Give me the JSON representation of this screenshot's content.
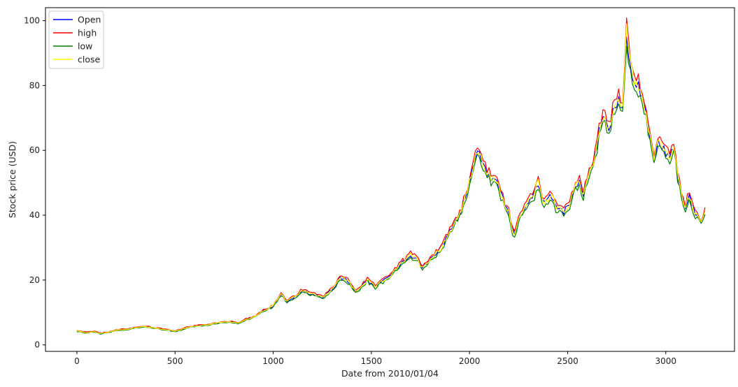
{
  "chart_data": {
    "type": "line",
    "xlabel": "Date from 2010/01/04",
    "ylabel": "Stock price (USD)",
    "xlim": [
      -160,
      3350
    ],
    "ylim": [
      -2,
      104
    ],
    "x_ticks": [
      0,
      500,
      1000,
      1500,
      2000,
      2500,
      3000
    ],
    "y_ticks": [
      0,
      20,
      40,
      60,
      80,
      100
    ],
    "grid": false,
    "legend_position": "upper-left",
    "x_step": 10,
    "close_anchors": [
      [
        0,
        4.3
      ],
      [
        40,
        3.8
      ],
      [
        80,
        4.1
      ],
      [
        120,
        3.5
      ],
      [
        160,
        3.9
      ],
      [
        200,
        4.5
      ],
      [
        260,
        4.9
      ],
      [
        300,
        5.3
      ],
      [
        350,
        5.7
      ],
      [
        400,
        5.2
      ],
      [
        450,
        4.8
      ],
      [
        500,
        4.2
      ],
      [
        560,
        5.3
      ],
      [
        600,
        5.8
      ],
      [
        660,
        6.2
      ],
      [
        720,
        6.8
      ],
      [
        780,
        7.1
      ],
      [
        820,
        6.6
      ],
      [
        860,
        7.8
      ],
      [
        900,
        8.6
      ],
      [
        950,
        10.6
      ],
      [
        1000,
        12.0
      ],
      [
        1040,
        15.8
      ],
      [
        1070,
        13.3
      ],
      [
        1100,
        14.5
      ],
      [
        1150,
        16.8
      ],
      [
        1180,
        15.9
      ],
      [
        1220,
        15.5
      ],
      [
        1250,
        14.8
      ],
      [
        1280,
        16.0
      ],
      [
        1320,
        18.5
      ],
      [
        1340,
        20.8
      ],
      [
        1380,
        19.8
      ],
      [
        1420,
        16.5
      ],
      [
        1450,
        18.0
      ],
      [
        1480,
        19.8
      ],
      [
        1520,
        18.0
      ],
      [
        1560,
        19.8
      ],
      [
        1600,
        21.5
      ],
      [
        1650,
        24.8
      ],
      [
        1700,
        27.8
      ],
      [
        1730,
        26.5
      ],
      [
        1760,
        24.0
      ],
      [
        1800,
        26.5
      ],
      [
        1850,
        29.5
      ],
      [
        1900,
        35.0
      ],
      [
        1940,
        39.0
      ],
      [
        1970,
        44.0
      ],
      [
        2000,
        50.0
      ],
      [
        2020,
        55.0
      ],
      [
        2040,
        60.0
      ],
      [
        2060,
        57.0
      ],
      [
        2100,
        52.0
      ],
      [
        2140,
        50.0
      ],
      [
        2170,
        45.0
      ],
      [
        2200,
        41.0
      ],
      [
        2225,
        34.0
      ],
      [
        2250,
        38.0
      ],
      [
        2280,
        42.0
      ],
      [
        2300,
        44.0
      ],
      [
        2330,
        47.0
      ],
      [
        2350,
        50.0
      ],
      [
        2380,
        44.0
      ],
      [
        2420,
        46.0
      ],
      [
        2440,
        43.0
      ],
      [
        2480,
        41.0
      ],
      [
        2510,
        43.0
      ],
      [
        2530,
        48.0
      ],
      [
        2560,
        50.0
      ],
      [
        2580,
        46.0
      ],
      [
        2600,
        52.0
      ],
      [
        2640,
        58.0
      ],
      [
        2660,
        66.0
      ],
      [
        2680,
        70.0
      ],
      [
        2710,
        66.0
      ],
      [
        2730,
        72.0
      ],
      [
        2760,
        76.0
      ],
      [
        2780,
        72.0
      ],
      [
        2790,
        85.0
      ],
      [
        2800,
        97.0
      ],
      [
        2810,
        90.0
      ],
      [
        2830,
        83.0
      ],
      [
        2850,
        80.0
      ],
      [
        2880,
        78.0
      ],
      [
        2900,
        70.0
      ],
      [
        2920,
        64.0
      ],
      [
        2940,
        58.0
      ],
      [
        2960,
        63.0
      ],
      [
        2990,
        60.0
      ],
      [
        3020,
        58.0
      ],
      [
        3040,
        61.0
      ],
      [
        3060,
        52.0
      ],
      [
        3080,
        46.0
      ],
      [
        3100,
        43.0
      ],
      [
        3120,
        46.0
      ],
      [
        3140,
        42.0
      ],
      [
        3160,
        40.0
      ],
      [
        3180,
        38.0
      ],
      [
        3200,
        41.0
      ]
    ],
    "series": [
      {
        "name": "Open",
        "color": "#0000ff"
      },
      {
        "name": "high",
        "color": "#ff0000"
      },
      {
        "name": "low",
        "color": "#008000"
      },
      {
        "name": "close",
        "color": "#ffff00"
      }
    ]
  }
}
